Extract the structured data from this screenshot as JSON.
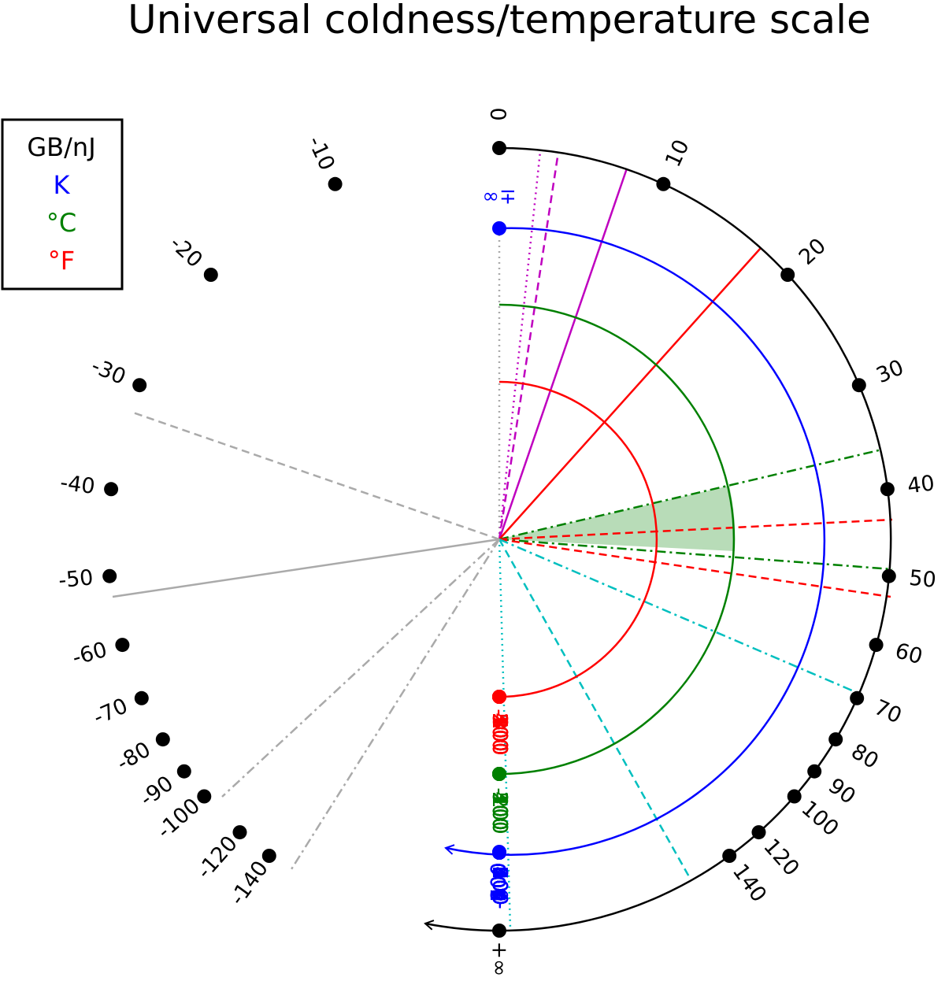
{
  "title": "Universal coldness/temperature scale",
  "legend": {
    "entries": [
      {
        "text": "GB/nJ",
        "color": "#000000"
      },
      {
        "text": "K",
        "color": "#0000ff"
      },
      {
        "text": "°C",
        "color": "#008000"
      },
      {
        "text": "°F",
        "color": "#ff0000"
      }
    ]
  },
  "colors": {
    "coldness": "#000000",
    "kelvin": "#0000ff",
    "celsius": "#008000",
    "fahrenheit": "#ff0000",
    "cyan": "#00bfbf",
    "magenta": "#bf00bf",
    "gray": "#aaaaaa",
    "fill": "#b8dcb8"
  },
  "scales": {
    "coldness": {
      "unit": "GB/nJ",
      "ticks": [
        "0",
        "10",
        "20",
        "30",
        "40",
        "50",
        "60",
        "70",
        "80",
        "90",
        "100",
        "120",
        "140",
        "-10",
        "-20",
        "-30",
        "-40",
        "-50",
        "-60",
        "-70",
        "-80",
        "-90",
        "-100",
        "-120",
        "-140"
      ],
      "infinity_label": "+∞"
    },
    "kelvin": {
      "unit": "K",
      "ticks": [
        "100",
        "200",
        "300",
        "400",
        "500",
        "600",
        "700",
        "800",
        "900",
        "-100",
        "-200",
        "-300",
        "-400",
        "-500",
        "-600",
        "-700",
        "-800",
        "-900"
      ],
      "zero_label": "0",
      "infinity_label": "±∞"
    },
    "celsius": {
      "unit": "°C",
      "ticks": [
        "-200",
        "-100",
        "0",
        "100",
        "200",
        "300",
        "400",
        "500"
      ]
    },
    "fahrenheit": {
      "unit": "°F",
      "ticks": [
        "-400",
        "-300",
        "-200",
        "-100",
        "0",
        "100",
        "200",
        "300",
        "400",
        "500"
      ]
    }
  }
}
